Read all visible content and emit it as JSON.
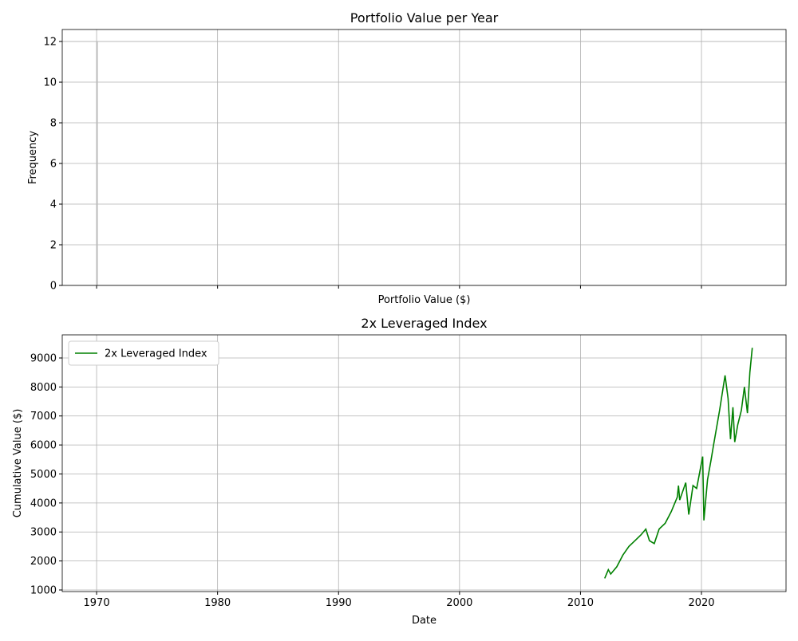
{
  "chart_data": [
    {
      "type": "histogram",
      "title": "Portfolio Value per Year",
      "xlabel": "Portfolio Value ($)",
      "ylabel": "Frequency",
      "bins": [
        1970.0,
        1970.06
      ],
      "counts": [
        12
      ],
      "color": "#bbbbbb",
      "xlim": [
        1967.16,
        2026.99
      ],
      "ylim": [
        0,
        12.59
      ],
      "yticks": [
        0,
        2,
        4,
        6,
        8,
        10,
        12
      ],
      "grid": true
    },
    {
      "type": "line",
      "title": "2x Leveraged Index",
      "xlabel": "Date",
      "ylabel": "Cumulative Value ($)",
      "x": [
        2012.0,
        2012.3,
        2012.5,
        2013.0,
        2013.5,
        2014.0,
        2014.5,
        2015.0,
        2015.4,
        2015.7,
        2016.1,
        2016.5,
        2017.0,
        2017.5,
        2018.0,
        2018.1,
        2018.2,
        2018.7,
        2018.95,
        2019.3,
        2019.6,
        2020.1,
        2020.2,
        2020.5,
        2020.8,
        2021.0,
        2021.5,
        2021.95,
        2022.2,
        2022.4,
        2022.6,
        2022.75,
        2023.0,
        2023.3,
        2023.55,
        2023.8,
        2024.0,
        2024.2
      ],
      "series": [
        {
          "name": "2x Leveraged Index",
          "color": "#008000",
          "values": [
            1400,
            1700,
            1550,
            1800,
            2200,
            2500,
            2700,
            2900,
            3100,
            2700,
            2600,
            3100,
            3300,
            3700,
            4200,
            4600,
            4100,
            4700,
            3600,
            4600,
            4500,
            5600,
            3400,
            4800,
            5500,
            6000,
            7200,
            8400,
            7600,
            6200,
            7300,
            6100,
            6700,
            7200,
            8000,
            7100,
            8500,
            9350
          ]
        }
      ],
      "xlim": [
        1967.16,
        2026.99
      ],
      "xticks": [
        1970,
        1980,
        1990,
        2000,
        2010,
        2020
      ],
      "ylim": [
        945,
        9797
      ],
      "yticks": [
        1000,
        2000,
        3000,
        4000,
        5000,
        6000,
        7000,
        8000,
        9000
      ],
      "grid": true,
      "legend": "upper-left"
    }
  ]
}
